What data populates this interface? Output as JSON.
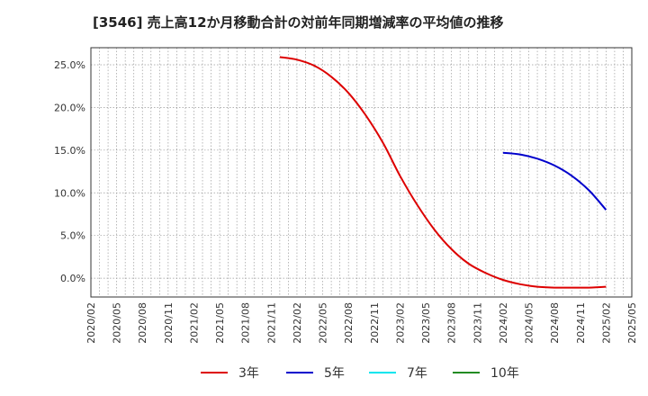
{
  "chart_data": {
    "type": "line",
    "title": "[3546]  売上高12か月移動合計の対前年同期増減率の平均値の推移",
    "xlabel": "",
    "ylabel": "",
    "ylim": [
      -2.2,
      27.0
    ],
    "y_ticks": [
      0,
      5,
      10,
      15,
      20,
      25
    ],
    "y_tick_labels": [
      "0.0%",
      "5.0%",
      "10.0%",
      "15.0%",
      "20.0%",
      "25.0%"
    ],
    "x_tick_labels": [
      "2020/02",
      "2020/05",
      "2020/08",
      "2020/11",
      "2021/02",
      "2021/05",
      "2021/08",
      "2021/11",
      "2022/02",
      "2022/05",
      "2022/08",
      "2022/11",
      "2023/02",
      "2023/05",
      "2023/08",
      "2023/11",
      "2024/02",
      "2024/05",
      "2024/08",
      "2024/11",
      "2025/02",
      "2025/05"
    ],
    "grid": true,
    "legend_position": "bottom",
    "series": [
      {
        "name": "3年",
        "color": "#dd0000",
        "points": [
          [
            "2021/12",
            25.9
          ],
          [
            "2022/02",
            25.6
          ],
          [
            "2022/04",
            24.9
          ],
          [
            "2022/06",
            23.6
          ],
          [
            "2022/08",
            21.7
          ],
          [
            "2022/10",
            19.1
          ],
          [
            "2022/12",
            15.9
          ],
          [
            "2023/02",
            12.0
          ],
          [
            "2023/04",
            8.6
          ],
          [
            "2023/06",
            5.7
          ],
          [
            "2023/08",
            3.4
          ],
          [
            "2023/10",
            1.7
          ],
          [
            "2023/12",
            0.6
          ],
          [
            "2024/02",
            -0.2
          ],
          [
            "2024/04",
            -0.7
          ],
          [
            "2024/06",
            -1.0
          ],
          [
            "2024/08",
            -1.1
          ],
          [
            "2024/10",
            -1.1
          ],
          [
            "2024/12",
            -1.1
          ],
          [
            "2025/02",
            -1.0
          ]
        ]
      },
      {
        "name": "5年",
        "color": "#0000cc",
        "points": [
          [
            "2024/02",
            14.7
          ],
          [
            "2024/04",
            14.5
          ],
          [
            "2024/06",
            14.0
          ],
          [
            "2024/08",
            13.2
          ],
          [
            "2024/10",
            12.0
          ],
          [
            "2024/12",
            10.3
          ],
          [
            "2025/02",
            8.0
          ]
        ]
      },
      {
        "name": "7年",
        "color": "#00e5ee",
        "points": []
      },
      {
        "name": "10年",
        "color": "#228b22",
        "points": []
      }
    ]
  }
}
